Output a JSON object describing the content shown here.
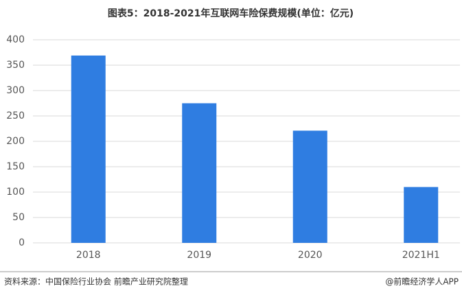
{
  "chart_data": {
    "type": "bar",
    "title": "图表5：2018-2021年互联网车险保费规模(单位：亿元)",
    "categories": [
      "2018",
      "2019",
      "2020",
      "2021H1"
    ],
    "values": [
      369,
      275,
      221,
      110
    ],
    "color": "#2f7de1",
    "ylim": [
      0,
      400
    ],
    "yticks": [
      0,
      50,
      100,
      150,
      200,
      250,
      300,
      350,
      400
    ],
    "grid": true,
    "source": "资料来源：中国保险行业协会 前瞻产业研究院整理",
    "credit": "@前瞻经济学人APP"
  }
}
